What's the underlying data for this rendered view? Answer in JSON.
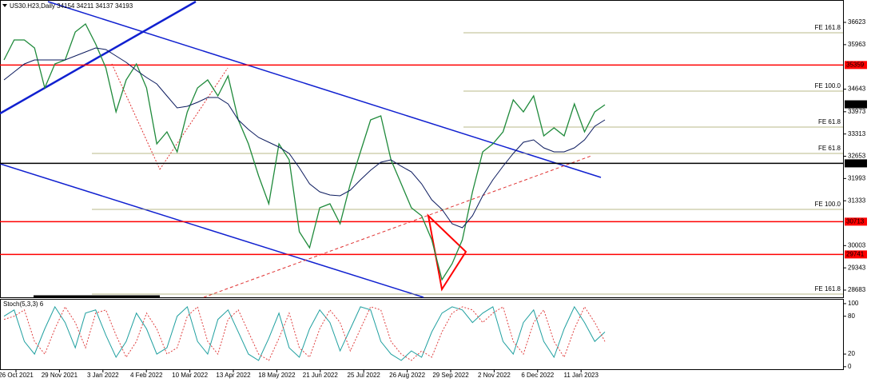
{
  "chart_data": [
    {
      "type": "line",
      "title": "US30.H23,Daily  34154 34211 34137 34193",
      "ylim": [
        28470,
        37287
      ],
      "yticks": [
        36623,
        35963,
        34643,
        33973,
        33313,
        32653,
        31993,
        31333,
        30003,
        29343,
        28683
      ],
      "xticks": [
        "26 Oct 2021",
        "29 Nov 2021",
        "3 Jan 2022",
        "4 Feb 2022",
        "10 Mar 2022",
        "13 Apr 2022",
        "18 May 2022",
        "21 Jun 2022",
        "25 Jul 2022",
        "26 Aug 2022",
        "29 Sep 2022",
        "2 Nov 2022",
        "6 Dec 2022",
        "11 Jan 2023"
      ],
      "series": [
        {
          "color": "#1f8a3b",
          "values": [
            35509,
            36102,
            36102,
            35865,
            34680,
            35391,
            35509,
            36339,
            36576,
            35983,
            35272,
            33969,
            34917,
            35391,
            34680,
            33021,
            33376,
            32784,
            33969,
            34680,
            34917,
            34443,
            35035,
            33732,
            33021,
            32073,
            31243,
            33021,
            32547,
            30414,
            29940,
            31125,
            31243,
            30651,
            31836,
            32784,
            33732,
            33850,
            32547,
            31836,
            31125,
            30888,
            30177,
            28992,
            29466,
            30177,
            31599,
            32784,
            33021,
            33376,
            34324,
            33969,
            34443,
            33258,
            33495,
            33258,
            34206,
            33376,
            33969,
            34180
          ]
        },
        {
          "color": "#0b1a5e",
          "values": [
            34917,
            35154,
            35391,
            35509,
            35509,
            35509,
            35509,
            35628,
            35746,
            35865,
            35817,
            35628,
            35438,
            35201,
            34988,
            34798,
            34443,
            34087,
            34135,
            34253,
            34395,
            34395,
            34206,
            33732,
            33447,
            33210,
            33068,
            32926,
            32737,
            32310,
            31836,
            31599,
            31504,
            31480,
            31646,
            31954,
            32239,
            32476,
            32547,
            32357,
            32191,
            31836,
            31362,
            31078,
            30651,
            30532,
            30888,
            31480,
            31954,
            32357,
            32737,
            33068,
            33139,
            32902,
            32784,
            32784,
            32902,
            33139,
            33542,
            33732
          ]
        }
      ],
      "hlines": [
        {
          "value": 35359,
          "color": "#ff0000"
        },
        {
          "value": 34193,
          "color": "#000000"
        },
        {
          "value": 32442,
          "color": "#000000"
        },
        {
          "value": 30713,
          "color": "#ff0000"
        },
        {
          "value": 29741,
          "color": "#ff0000"
        }
      ],
      "fib_lines": [
        {
          "label": "FE 161.8",
          "value": 36315
        },
        {
          "label": "FE 100.0",
          "value": 34585
        },
        {
          "label": "FE 61.8",
          "value": 33518
        },
        {
          "label": "FE 61.8",
          "value": 32737
        },
        {
          "label": "FE 100.0",
          "value": 31077
        },
        {
          "label": "FE 161.8",
          "value": 28565
        }
      ]
    },
    {
      "type": "line",
      "title": "Stoch(5,3,3) 6",
      "ylim": [
        -4,
        105
      ],
      "yticks": [
        100,
        80,
        20,
        0
      ],
      "series": [
        {
          "color": "#20a0a0",
          "values": [
            80,
            90,
            40,
            20,
            60,
            95,
            70,
            30,
            85,
            90,
            50,
            15,
            40,
            85,
            60,
            20,
            30,
            80,
            95,
            40,
            20,
            75,
            90,
            55,
            20,
            10,
            45,
            85,
            30,
            15,
            60,
            90,
            70,
            25,
            60,
            95,
            90,
            40,
            20,
            10,
            25,
            15,
            55,
            85,
            95,
            90,
            70,
            85,
            95,
            40,
            20,
            70,
            90,
            40,
            15,
            60,
            95,
            70,
            40,
            55
          ]
        },
        {
          "color": "#e04040",
          "dashed": true,
          "values": [
            75,
            80,
            90,
            40,
            20,
            60,
            95,
            70,
            30,
            85,
            90,
            50,
            15,
            40,
            85,
            60,
            20,
            30,
            80,
            95,
            40,
            20,
            75,
            90,
            55,
            20,
            10,
            45,
            85,
            30,
            15,
            60,
            90,
            70,
            25,
            60,
            95,
            90,
            40,
            20,
            10,
            25,
            15,
            55,
            85,
            95,
            90,
            70,
            85,
            95,
            40,
            20,
            70,
            90,
            40,
            15,
            60,
            95,
            70,
            40
          ]
        }
      ]
    }
  ]
}
